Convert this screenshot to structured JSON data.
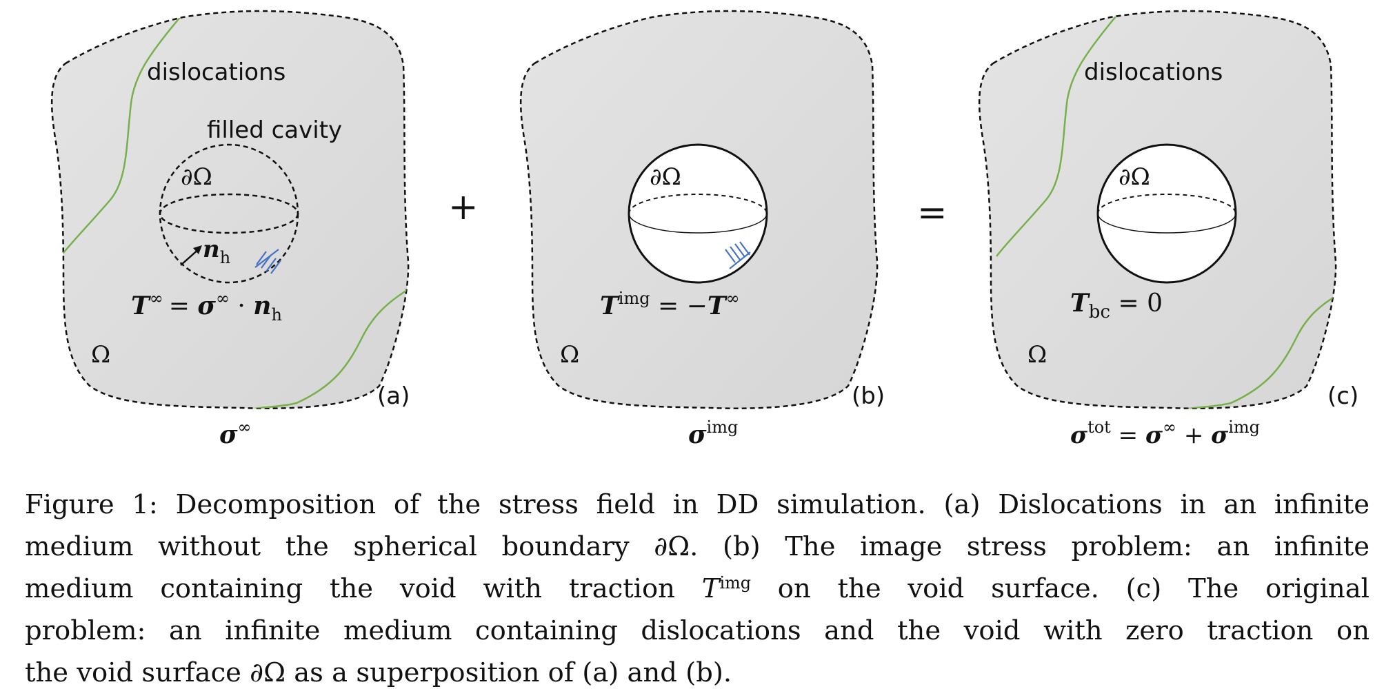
{
  "panels": [
    {
      "id": "a",
      "tag": "(a)",
      "dislocations_label": "dislocations",
      "cavity_label": "filled cavity",
      "boundary_label": "∂Ω",
      "normal_label": "n",
      "normal_sub": "h",
      "domain_label": "Ω",
      "eq_lhs": "T",
      "eq_lhs_sup": "∞",
      "eq_mid": "= ",
      "eq_sigma": "σ",
      "eq_sigma_sup": "∞",
      "eq_dot": " · ",
      "eq_n": "n",
      "eq_n_sub": "h",
      "stress": "σ",
      "stress_sup": "∞"
    },
    {
      "id": "b",
      "tag": "(b)",
      "boundary_label": "∂Ω",
      "domain_label": "Ω",
      "eq_lhs": "T",
      "eq_lhs_sup": "img",
      "eq_rhs": " = −",
      "eq_rhs_T": "T",
      "eq_rhs_sup": "∞",
      "stress": "σ",
      "stress_sup": "img"
    },
    {
      "id": "c",
      "tag": "(c)",
      "dislocations_label": "dislocations",
      "boundary_label": "∂Ω",
      "domain_label": "Ω",
      "eq_lhs": "T",
      "eq_lhs_sub": "bc",
      "eq_rhs": " = 0",
      "stress": "σ",
      "stress_sup": "tot",
      "stress_eq1": " = ",
      "stress_s1": "σ",
      "stress_s1_sup": "∞",
      "stress_plus": " + ",
      "stress_s2": "σ",
      "stress_s2_sup": "img"
    }
  ],
  "operators": {
    "plus": "+",
    "equals": "="
  },
  "caption": {
    "line1_pre": "Figure 1: Decomposition of the stress field in DD simulation. (a) Dislocations in an infinite",
    "line2": "medium without the spherical boundary ∂Ω. (b) The image stress problem: an infinite",
    "line3_pre": "medium containing the void with traction ",
    "line3_T": "T",
    "line3_sup": "img",
    "line3_post": " on the void surface. (c) The original",
    "line4": "problem: an infinite medium containing dislocations and the void with zero traction on",
    "line5": "the void surface ∂Ω as a superposition of (a) and (b)."
  },
  "colors": {
    "fill": "#e6e6e6",
    "dislocation": "#77b04a",
    "traction": "#4472c4"
  }
}
